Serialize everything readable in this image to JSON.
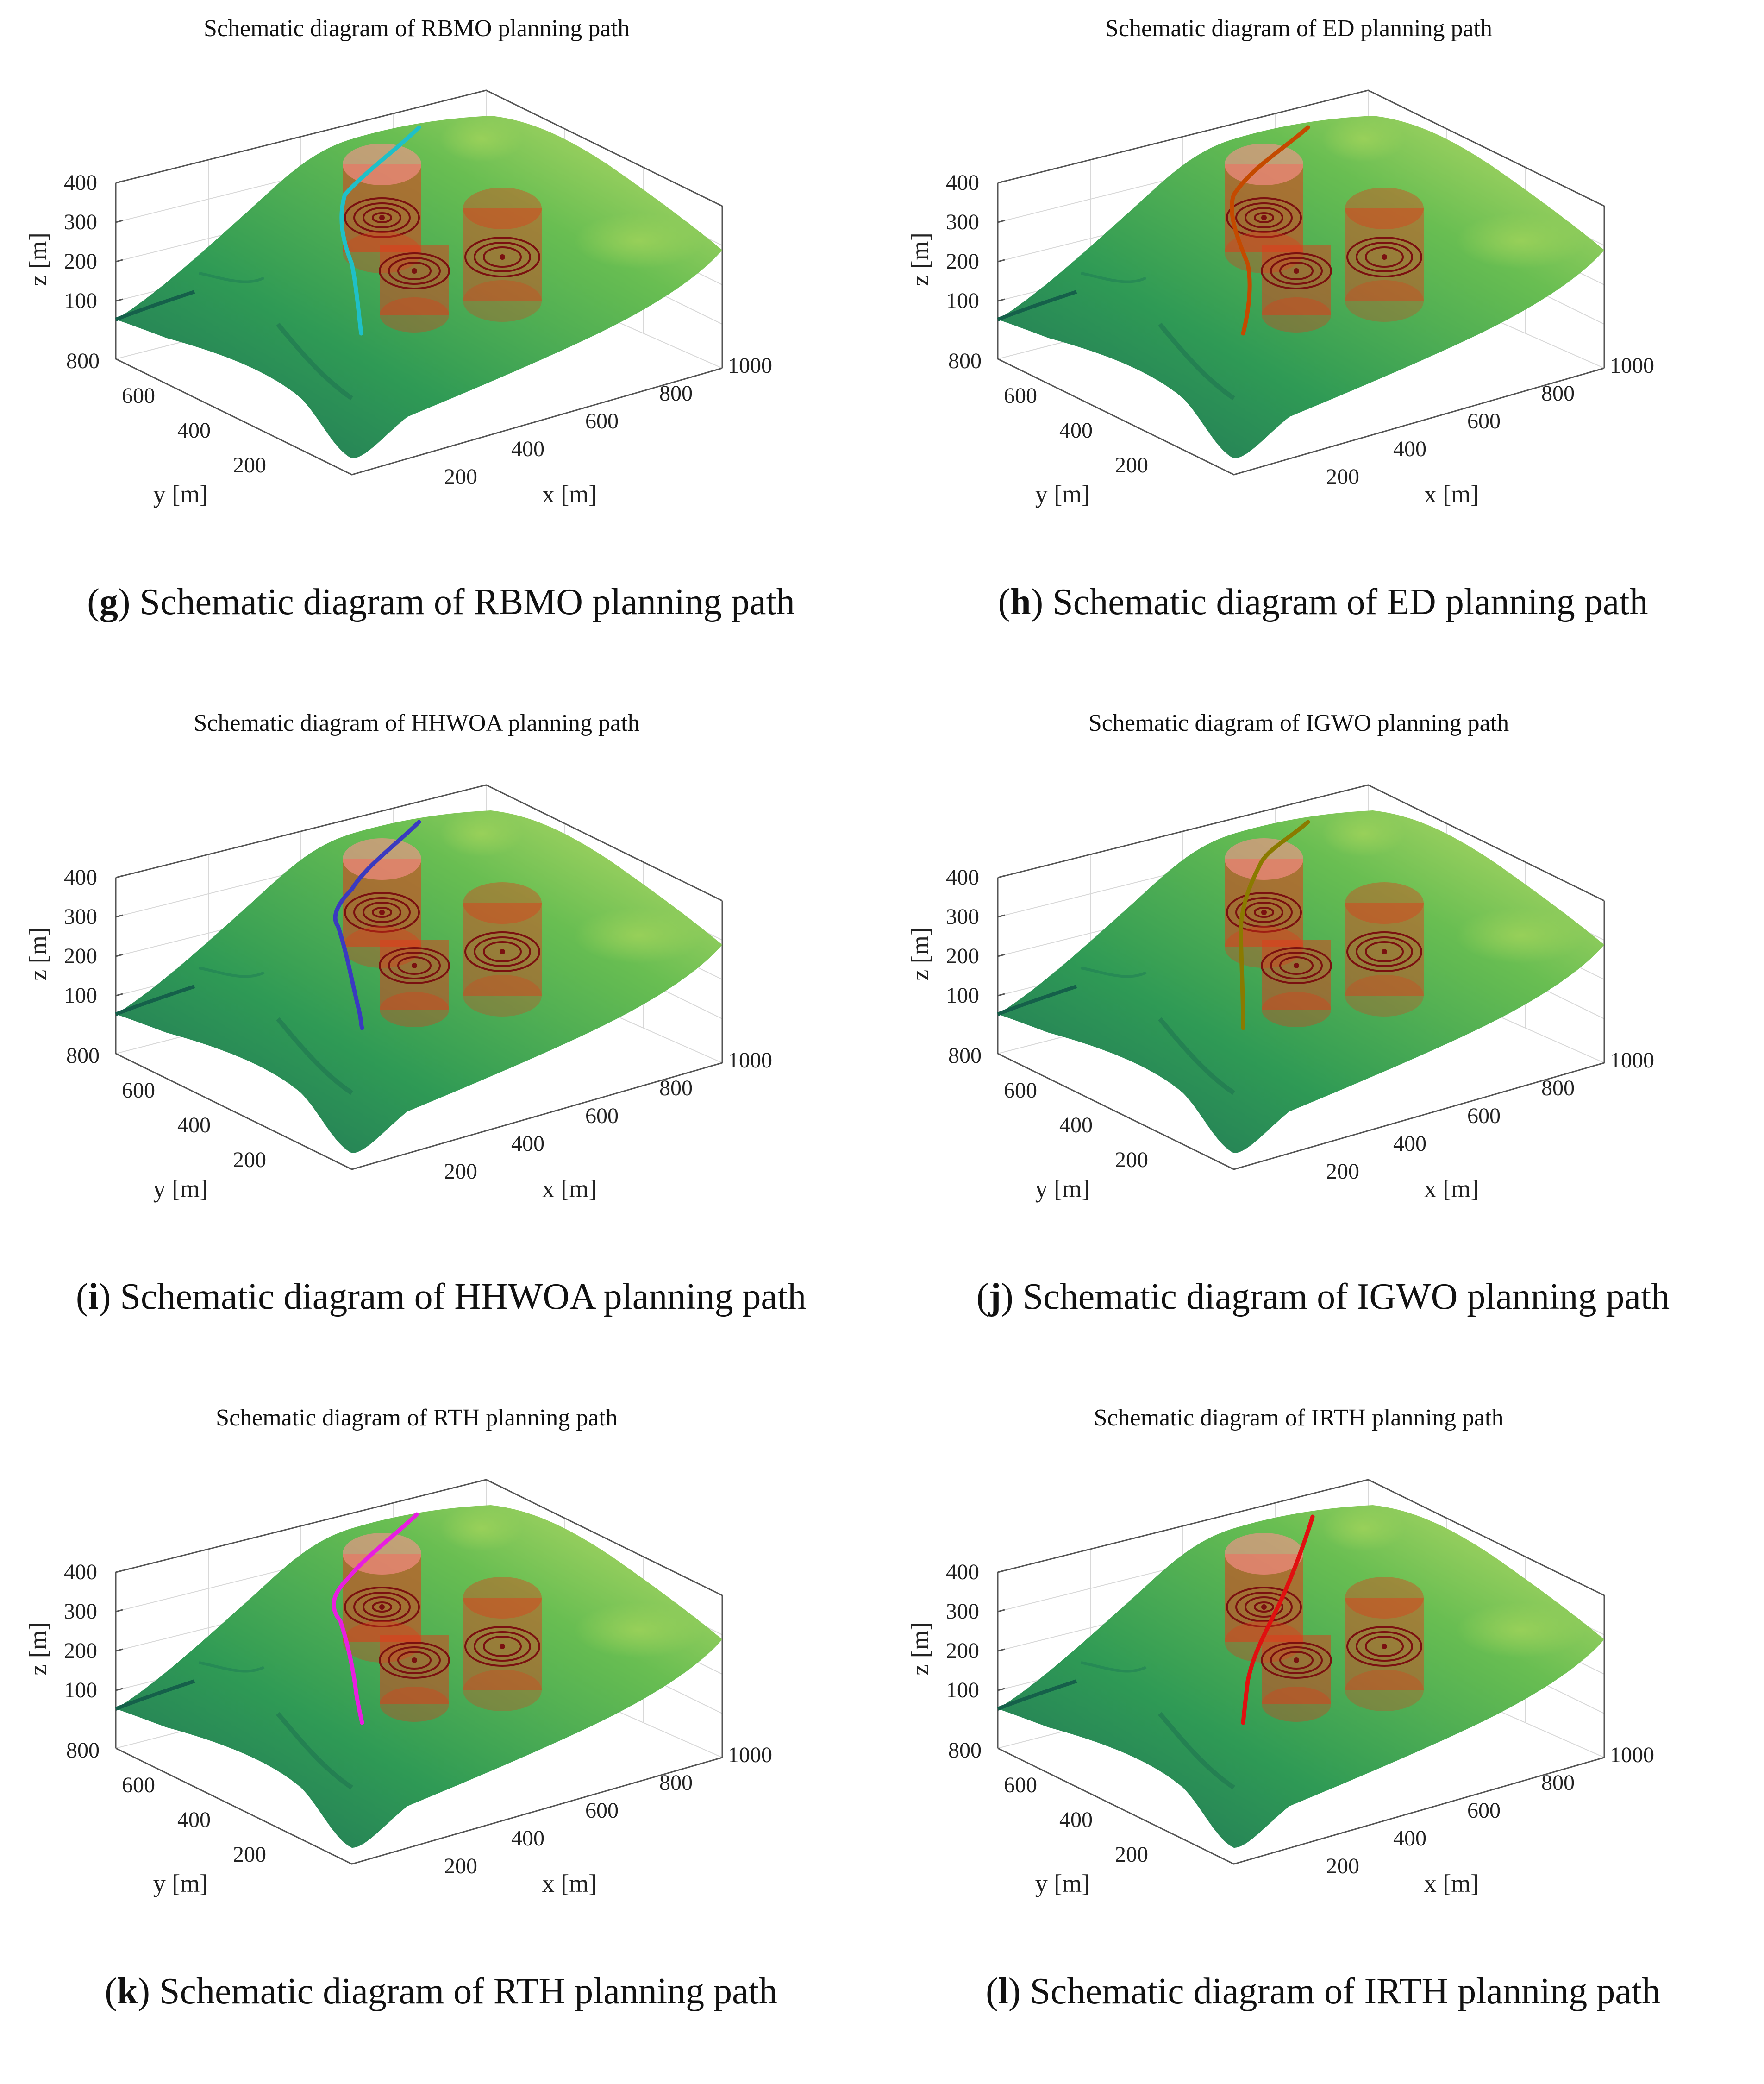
{
  "common": {
    "zlabel": "z [m]",
    "ylabel": "y [m]",
    "xlabel": "x [m]",
    "zticks": [
      "400",
      "300",
      "200",
      "100"
    ],
    "yticks": [
      "800",
      "600",
      "400",
      "200"
    ],
    "xticks": [
      "200",
      "400",
      "600",
      "800",
      "1000"
    ]
  },
  "panels": [
    {
      "letter": "g",
      "title": "Schematic diagram of RBMO planning path",
      "caption": " Schematic diagram of RBMO planning path",
      "path_color": "#1fc0c8"
    },
    {
      "letter": "h",
      "title": "Schematic diagram of ED planning path",
      "caption": " Schematic diagram of ED planning path",
      "path_color": "#c44a00"
    },
    {
      "letter": "i",
      "title": "Schematic diagram of HHWOA planning path",
      "caption": " Schematic diagram of HHWOA planning path",
      "path_color": "#3a3ac0"
    },
    {
      "letter": "j",
      "title": "Schematic diagram of IGWO planning path",
      "caption": " Schematic diagram of IGWO planning path",
      "path_color": "#8a7a00"
    },
    {
      "letter": "k",
      "title": "Schematic diagram of RTH planning path",
      "caption": " Schematic diagram of RTH planning path",
      "path_color": "#e81ee0"
    },
    {
      "letter": "l",
      "title": "Schematic diagram of IRTH planning path",
      "caption": " Schematic diagram of IRTH planning path",
      "path_color": "#e01010"
    }
  ]
}
